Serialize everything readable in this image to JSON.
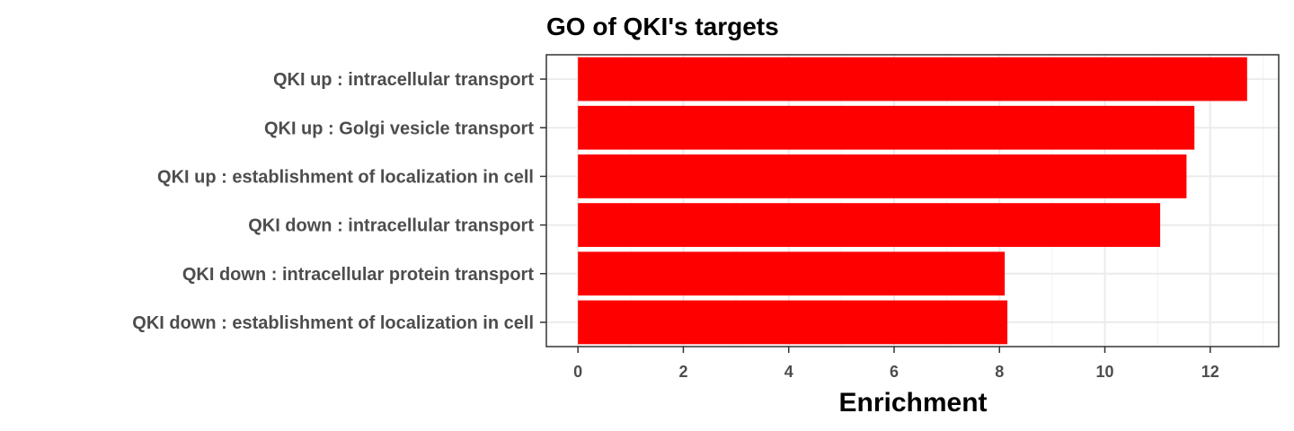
{
  "chart_data": {
    "type": "bar",
    "orientation": "horizontal",
    "title": "GO of QKI's targets",
    "xlabel": "Enrichment",
    "ylabel": "",
    "categories": [
      "QKI up : intracellular transport",
      "QKI up : Golgi vesicle transport",
      "QKI up : establishment of localization in cell",
      "QKI down : intracellular transport",
      "QKI down : intracellular protein transport",
      "QKI down : establishment of localization in cell"
    ],
    "values": [
      12.7,
      11.7,
      11.55,
      11.05,
      8.1,
      8.15
    ],
    "xticks": [
      "0",
      "2",
      "4",
      "6",
      "8",
      "10",
      "12"
    ],
    "xlim": [
      -0.6,
      13.3
    ],
    "bar_color": "#ff0000",
    "grid": true,
    "legend": "none"
  }
}
